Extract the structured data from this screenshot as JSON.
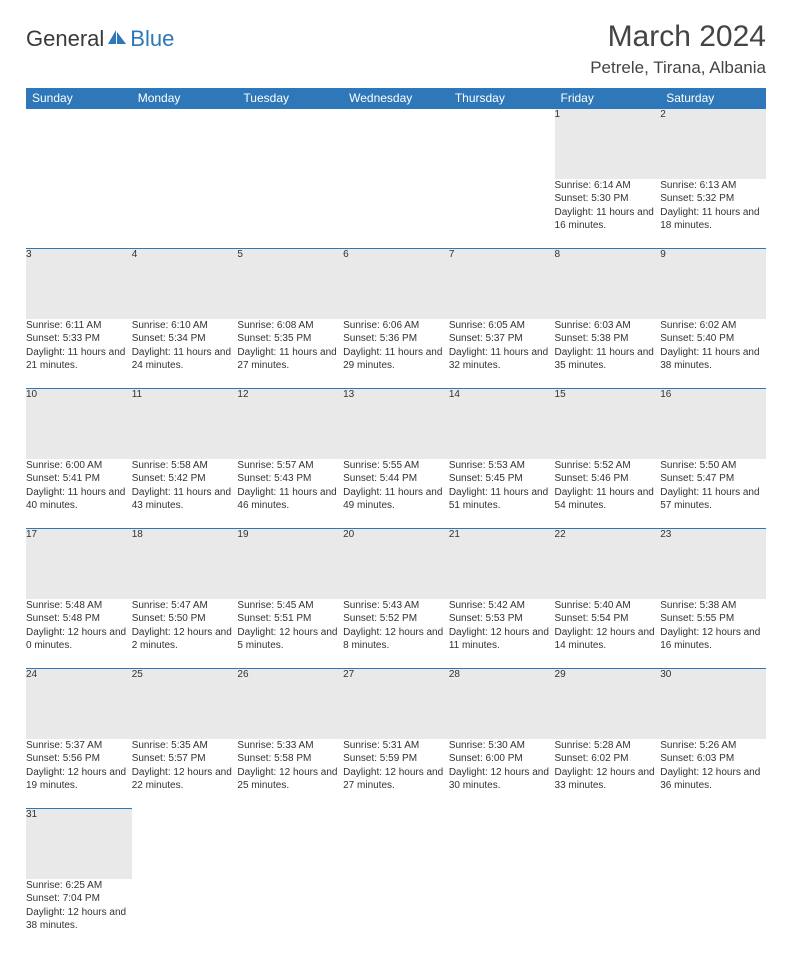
{
  "brand": {
    "part1": "General",
    "part2": "Blue"
  },
  "title": "March 2024",
  "location": "Petrele, Tirana, Albania",
  "colors": {
    "header_bg": "#2e77b8",
    "header_text": "#ffffff",
    "daynum_bg": "#e9e9e9",
    "border": "#2e77b8",
    "text": "#333333"
  },
  "weekdays": [
    "Sunday",
    "Monday",
    "Tuesday",
    "Wednesday",
    "Thursday",
    "Friday",
    "Saturday"
  ],
  "weeks": [
    [
      null,
      null,
      null,
      null,
      null,
      {
        "d": "1",
        "sr": "6:14 AM",
        "ss": "5:30 PM",
        "dl": "11 hours and 16 minutes."
      },
      {
        "d": "2",
        "sr": "6:13 AM",
        "ss": "5:32 PM",
        "dl": "11 hours and 18 minutes."
      }
    ],
    [
      {
        "d": "3",
        "sr": "6:11 AM",
        "ss": "5:33 PM",
        "dl": "11 hours and 21 minutes."
      },
      {
        "d": "4",
        "sr": "6:10 AM",
        "ss": "5:34 PM",
        "dl": "11 hours and 24 minutes."
      },
      {
        "d": "5",
        "sr": "6:08 AM",
        "ss": "5:35 PM",
        "dl": "11 hours and 27 minutes."
      },
      {
        "d": "6",
        "sr": "6:06 AM",
        "ss": "5:36 PM",
        "dl": "11 hours and 29 minutes."
      },
      {
        "d": "7",
        "sr": "6:05 AM",
        "ss": "5:37 PM",
        "dl": "11 hours and 32 minutes."
      },
      {
        "d": "8",
        "sr": "6:03 AM",
        "ss": "5:38 PM",
        "dl": "11 hours and 35 minutes."
      },
      {
        "d": "9",
        "sr": "6:02 AM",
        "ss": "5:40 PM",
        "dl": "11 hours and 38 minutes."
      }
    ],
    [
      {
        "d": "10",
        "sr": "6:00 AM",
        "ss": "5:41 PM",
        "dl": "11 hours and 40 minutes."
      },
      {
        "d": "11",
        "sr": "5:58 AM",
        "ss": "5:42 PM",
        "dl": "11 hours and 43 minutes."
      },
      {
        "d": "12",
        "sr": "5:57 AM",
        "ss": "5:43 PM",
        "dl": "11 hours and 46 minutes."
      },
      {
        "d": "13",
        "sr": "5:55 AM",
        "ss": "5:44 PM",
        "dl": "11 hours and 49 minutes."
      },
      {
        "d": "14",
        "sr": "5:53 AM",
        "ss": "5:45 PM",
        "dl": "11 hours and 51 minutes."
      },
      {
        "d": "15",
        "sr": "5:52 AM",
        "ss": "5:46 PM",
        "dl": "11 hours and 54 minutes."
      },
      {
        "d": "16",
        "sr": "5:50 AM",
        "ss": "5:47 PM",
        "dl": "11 hours and 57 minutes."
      }
    ],
    [
      {
        "d": "17",
        "sr": "5:48 AM",
        "ss": "5:48 PM",
        "dl": "12 hours and 0 minutes."
      },
      {
        "d": "18",
        "sr": "5:47 AM",
        "ss": "5:50 PM",
        "dl": "12 hours and 2 minutes."
      },
      {
        "d": "19",
        "sr": "5:45 AM",
        "ss": "5:51 PM",
        "dl": "12 hours and 5 minutes."
      },
      {
        "d": "20",
        "sr": "5:43 AM",
        "ss": "5:52 PM",
        "dl": "12 hours and 8 minutes."
      },
      {
        "d": "21",
        "sr": "5:42 AM",
        "ss": "5:53 PM",
        "dl": "12 hours and 11 minutes."
      },
      {
        "d": "22",
        "sr": "5:40 AM",
        "ss": "5:54 PM",
        "dl": "12 hours and 14 minutes."
      },
      {
        "d": "23",
        "sr": "5:38 AM",
        "ss": "5:55 PM",
        "dl": "12 hours and 16 minutes."
      }
    ],
    [
      {
        "d": "24",
        "sr": "5:37 AM",
        "ss": "5:56 PM",
        "dl": "12 hours and 19 minutes."
      },
      {
        "d": "25",
        "sr": "5:35 AM",
        "ss": "5:57 PM",
        "dl": "12 hours and 22 minutes."
      },
      {
        "d": "26",
        "sr": "5:33 AM",
        "ss": "5:58 PM",
        "dl": "12 hours and 25 minutes."
      },
      {
        "d": "27",
        "sr": "5:31 AM",
        "ss": "5:59 PM",
        "dl": "12 hours and 27 minutes."
      },
      {
        "d": "28",
        "sr": "5:30 AM",
        "ss": "6:00 PM",
        "dl": "12 hours and 30 minutes."
      },
      {
        "d": "29",
        "sr": "5:28 AM",
        "ss": "6:02 PM",
        "dl": "12 hours and 33 minutes."
      },
      {
        "d": "30",
        "sr": "5:26 AM",
        "ss": "6:03 PM",
        "dl": "12 hours and 36 minutes."
      }
    ],
    [
      {
        "d": "31",
        "sr": "6:25 AM",
        "ss": "7:04 PM",
        "dl": "12 hours and 38 minutes."
      },
      null,
      null,
      null,
      null,
      null,
      null
    ]
  ],
  "labels": {
    "sunrise": "Sunrise:",
    "sunset": "Sunset:",
    "daylight": "Daylight:"
  }
}
